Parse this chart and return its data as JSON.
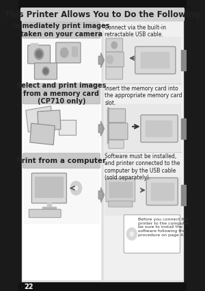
{
  "bg_color": "#1a1a1a",
  "page_bg": "#e8e8e8",
  "title_text": "This Printer Allows You to Do the Following",
  "title_bg": "#d0d0d0",
  "title_color": "#222222",
  "title_fontsize": 8.5,
  "left_panel_bg": "#ffffff",
  "right_panel_bg": "#f5f5f5",
  "arrow_color": "#888888",
  "side_tab_color": "#888888",
  "box1_label": "Immediately print images\ntaken on your camera",
  "box2_label": "Select and print images\nfrom a memory card\n(CP710 only)",
  "box3_label": "Print from a computer",
  "right_text1": "Connect via the built-in\nretractable USB cable.",
  "right_text2": "Insert the memory card into\nthe appropriate memory card\nslot.",
  "right_text3": "Software must be installed,\nand printer connected to the\ncomputer by the USB cable\n(sold separately).",
  "note_text": "Before you connect the\nprinter to the computer,\nbe sure to install the\nsoftware following the\nprocedure on page 42.",
  "page_number": "22",
  "label_bg": "#c8c8c8",
  "label_fontsize": 7.0,
  "body_fontsize": 5.5,
  "note_fontsize": 4.5
}
